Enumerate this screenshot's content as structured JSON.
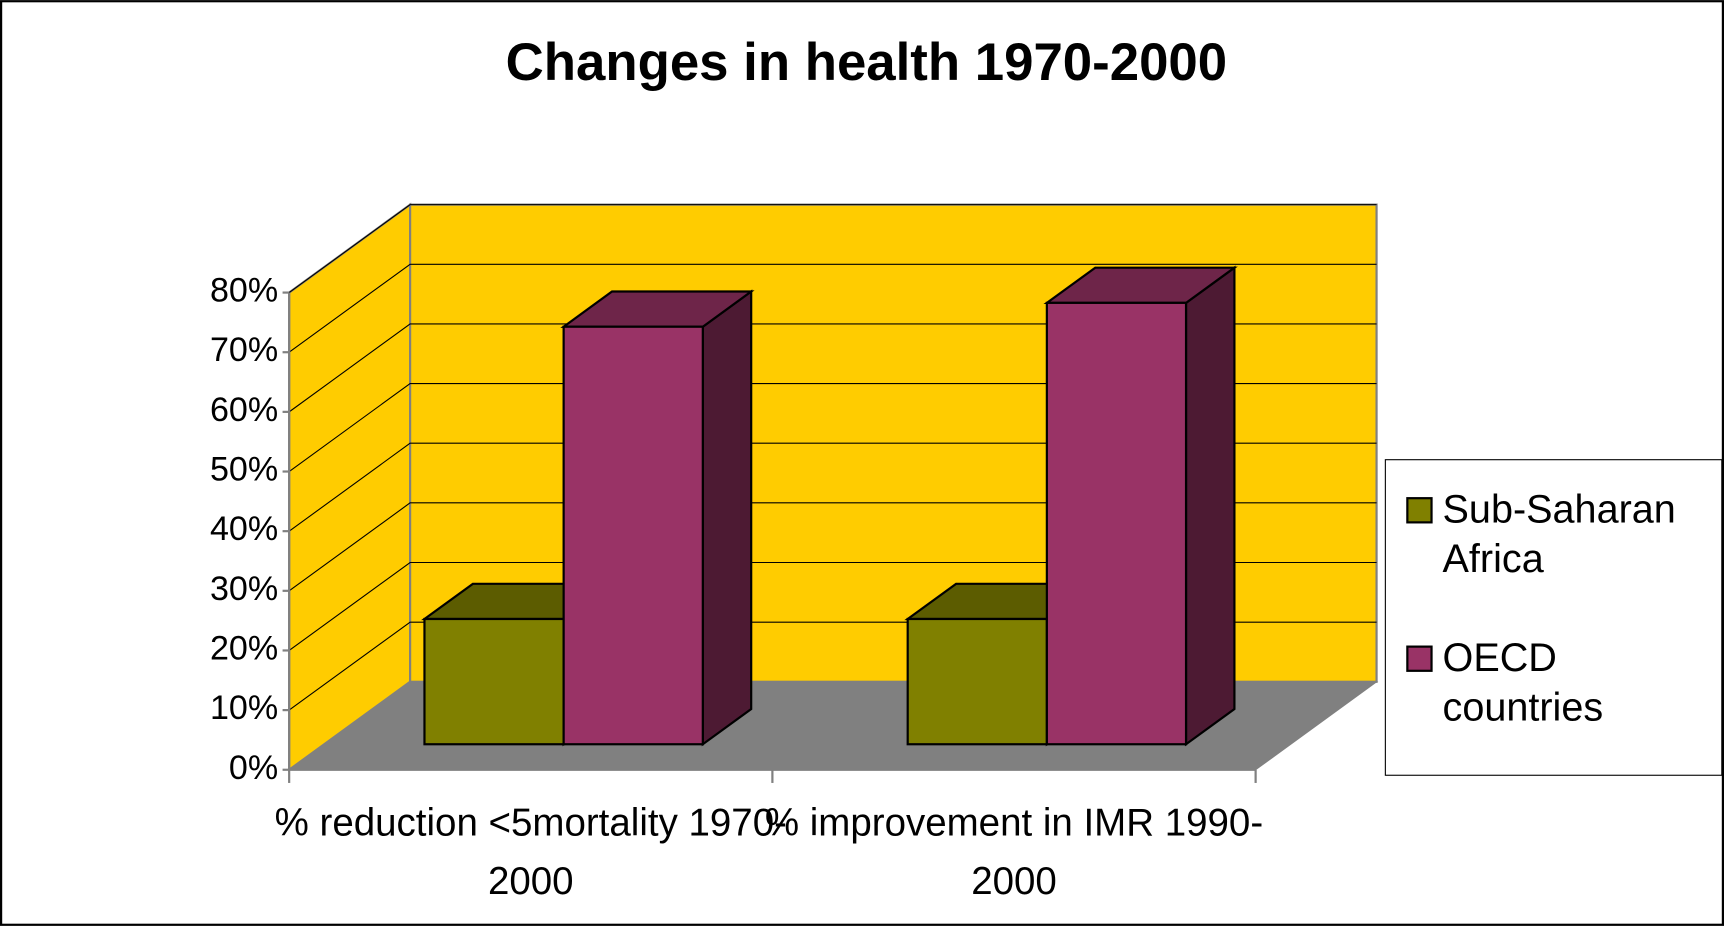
{
  "chart_data": {
    "type": "bar3d",
    "title": "Changes in health 1970-2000",
    "categories": [
      "% reduction <5mortality 1970-2000",
      "% improvement in IMR 1990-2000"
    ],
    "series": [
      {
        "name": "Sub-Saharan Africa",
        "color": "#808000",
        "values": [
          21,
          21
        ]
      },
      {
        "name": "OECD countries",
        "color": "#993366",
        "values": [
          70,
          74
        ]
      }
    ],
    "ylim": [
      0,
      80
    ],
    "yticks": [
      {
        "value": 0,
        "label": "0%"
      },
      {
        "value": 10,
        "label": "10%"
      },
      {
        "value": 20,
        "label": "20%"
      },
      {
        "value": 30,
        "label": "30%"
      },
      {
        "value": 40,
        "label": "40%"
      },
      {
        "value": 50,
        "label": "50%"
      },
      {
        "value": 60,
        "label": "60%"
      },
      {
        "value": 70,
        "label": "70%"
      },
      {
        "value": 80,
        "label": "80%"
      }
    ],
    "grid": true,
    "wall_color": "#FFCC00",
    "floor_color": "#808080",
    "legend": "right"
  }
}
